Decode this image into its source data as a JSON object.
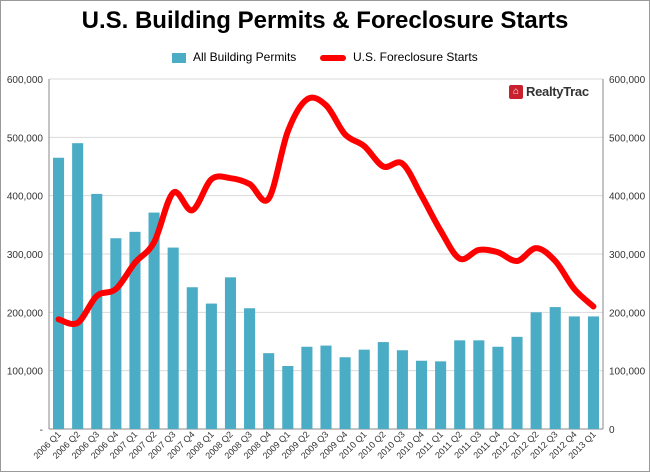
{
  "chart_data": {
    "type": "bar",
    "title": "U.S. Building Permits & Foreclosure Starts",
    "categories": [
      "2006 Q1",
      "2006 Q2",
      "2006 Q3",
      "2006 Q4",
      "2007 Q1",
      "2007 Q2",
      "2007 Q3",
      "2007 Q4",
      "2008 Q1",
      "2008 Q2",
      "2008 Q3",
      "2008 Q4",
      "2009 Q1",
      "2009 Q2",
      "2009 Q3",
      "2009 Q4",
      "2010 Q1",
      "2010 Q2",
      "2010 Q3",
      "2010 Q4",
      "2011 Q1",
      "2011 Q2",
      "2011 Q3",
      "2011 Q4",
      "2012 Q1",
      "2012 Q2",
      "2012 Q3",
      "2012 Q4",
      "2013 Q1"
    ],
    "series": [
      {
        "name": "All Building Permits",
        "kind": "bar",
        "color": "#4bacc6",
        "axis": "left",
        "values": [
          465000,
          490000,
          403000,
          327000,
          338000,
          371000,
          311000,
          243000,
          215000,
          260000,
          207000,
          130000,
          108000,
          141000,
          143000,
          123000,
          136000,
          149000,
          135000,
          117000,
          116000,
          152000,
          152000,
          141000,
          158000,
          200000,
          209000,
          193000,
          193000
        ]
      },
      {
        "name": "U.S. Foreclosure Starts",
        "kind": "line",
        "color": "#ff0000",
        "axis": "right",
        "values": [
          188000,
          182000,
          228000,
          240000,
          285000,
          320000,
          405000,
          375000,
          428000,
          430000,
          420000,
          395000,
          510000,
          565000,
          555000,
          505000,
          485000,
          450000,
          455000,
          400000,
          340000,
          292000,
          307000,
          303000,
          288000,
          310000,
          288000,
          240000,
          210000
        ]
      }
    ],
    "ylim": [
      0,
      600000
    ],
    "yticks": [
      0,
      100000,
      200000,
      300000,
      400000,
      500000,
      600000
    ],
    "ytick_labels": [
      "-",
      "100,000",
      "200,000",
      "300,000",
      "400,000",
      "500,000",
      "600,000"
    ],
    "y2lim": [
      0,
      600000
    ],
    "y2tick_labels": [
      "0",
      "100,000",
      "200,000",
      "300,000",
      "400,000",
      "500,000",
      "600,000"
    ],
    "grid": true,
    "legend_position": "top-center"
  },
  "logo": {
    "text": "RealtyTrac",
    "icon": "house-icon"
  }
}
